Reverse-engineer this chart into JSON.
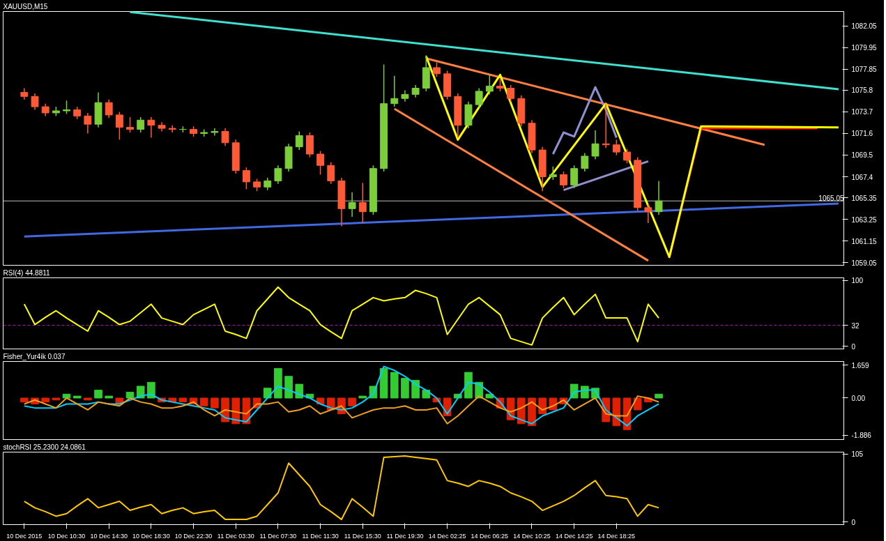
{
  "chart_data": [
    {
      "type": "candlestick",
      "title": "XAUUSD,M15",
      "ylim": [
        1058.8,
        1083.45
      ],
      "yticks": [
        1059.05,
        1061.15,
        1063.25,
        1065.35,
        1067.4,
        1069.5,
        1071.6,
        1073.7,
        1075.8,
        1077.85,
        1079.95,
        1082.05
      ],
      "tick_labels": "y",
      "categories": [
        null,
        null,
        null,
        null,
        null,
        null,
        null,
        null,
        null,
        null,
        null,
        null,
        null,
        null,
        null,
        null,
        null,
        null,
        null,
        null,
        null,
        null,
        null,
        null,
        null,
        null,
        null,
        null,
        null,
        null,
        null,
        null,
        null,
        null,
        null,
        null,
        null,
        null,
        null,
        null,
        null,
        null,
        null,
        null,
        null,
        null,
        null,
        null,
        null,
        null,
        null,
        null,
        null,
        null,
        null,
        null,
        null,
        null,
        null,
        null,
        null,
        null,
        null,
        null,
        null,
        null,
        null,
        null,
        null,
        null,
        null,
        null,
        null,
        null,
        null,
        null,
        null,
        null
      ],
      "ohlc": [
        [
          1075.6,
          1076.0,
          1074.9,
          1075.2
        ],
        [
          1075.2,
          1075.5,
          1073.9,
          1074.2
        ],
        [
          1074.2,
          1074.5,
          1073.3,
          1073.6
        ],
        [
          1073.6,
          1074.2,
          1073.3,
          1073.8
        ],
        [
          1073.8,
          1074.8,
          1073.5,
          1073.9
        ],
        [
          1073.9,
          1074.2,
          1073.0,
          1073.3
        ],
        [
          1073.3,
          1073.6,
          1071.6,
          1072.5
        ],
        [
          1072.5,
          1075.6,
          1072.2,
          1074.6
        ],
        [
          1074.6,
          1074.9,
          1073.1,
          1073.4
        ],
        [
          1073.4,
          1073.7,
          1071.0,
          1072.2
        ],
        [
          1072.2,
          1073.2,
          1071.7,
          1072.0
        ],
        [
          1072.0,
          1073.2,
          1071.7,
          1072.9
        ],
        [
          1072.9,
          1073.2,
          1071.2,
          1072.4
        ],
        [
          1072.4,
          1072.7,
          1071.8,
          1072.1
        ],
        [
          1072.1,
          1072.4,
          1071.7,
          1072.0
        ],
        [
          1072.0,
          1072.3,
          1071.7,
          1072.0
        ],
        [
          1072.0,
          1072.3,
          1071.3,
          1071.6
        ],
        [
          1071.6,
          1072.0,
          1071.3,
          1071.7
        ],
        [
          1071.7,
          1072.1,
          1071.4,
          1071.8
        ],
        [
          1071.8,
          1072.1,
          1070.4,
          1070.7
        ],
        [
          1070.7,
          1071.0,
          1067.7,
          1068.0
        ],
        [
          1068.0,
          1068.3,
          1066.2,
          1066.9
        ],
        [
          1066.9,
          1067.2,
          1066.0,
          1066.4
        ],
        [
          1066.4,
          1067.3,
          1066.1,
          1067.0
        ],
        [
          1067.0,
          1068.5,
          1066.7,
          1068.2
        ],
        [
          1068.2,
          1070.6,
          1067.9,
          1070.3
        ],
        [
          1070.3,
          1071.8,
          1070.0,
          1071.4
        ],
        [
          1071.4,
          1071.7,
          1069.3,
          1069.6
        ],
        [
          1069.6,
          1069.9,
          1067.6,
          1068.5
        ],
        [
          1068.5,
          1068.8,
          1066.7,
          1067.0
        ],
        [
          1067.0,
          1067.3,
          1062.6,
          1064.3
        ],
        [
          1064.3,
          1065.9,
          1063.5,
          1064.9
        ],
        [
          1064.9,
          1066.8,
          1062.9,
          1064.0
        ],
        [
          1064.0,
          1068.5,
          1063.7,
          1068.2
        ],
        [
          1068.2,
          1078.3,
          1067.9,
          1074.5
        ],
        [
          1074.5,
          1077.2,
          1074.2,
          1075.0
        ],
        [
          1075.0,
          1075.8,
          1074.7,
          1075.4
        ],
        [
          1075.4,
          1076.3,
          1075.1,
          1076.0
        ],
        [
          1076.0,
          1079.2,
          1075.7,
          1078.0
        ],
        [
          1078.0,
          1078.5,
          1077.1,
          1077.4
        ],
        [
          1077.4,
          1077.7,
          1074.9,
          1075.2
        ],
        [
          1075.2,
          1075.5,
          1071.2,
          1072.4
        ],
        [
          1072.4,
          1074.7,
          1072.1,
          1074.4
        ],
        [
          1074.4,
          1076.0,
          1074.1,
          1075.7
        ],
        [
          1075.7,
          1077.3,
          1075.4,
          1076.2
        ],
        [
          1076.2,
          1076.9,
          1075.7,
          1076.0
        ],
        [
          1076.0,
          1076.3,
          1074.7,
          1075.0
        ],
        [
          1075.0,
          1075.3,
          1072.3,
          1072.6
        ],
        [
          1072.6,
          1072.9,
          1069.7,
          1070.0
        ],
        [
          1070.0,
          1070.3,
          1066.0,
          1067.4
        ],
        [
          1067.4,
          1068.4,
          1067.1,
          1067.6
        ],
        [
          1067.6,
          1067.9,
          1066.3,
          1066.6
        ],
        [
          1066.6,
          1068.5,
          1066.3,
          1068.2
        ],
        [
          1068.2,
          1069.7,
          1067.9,
          1069.4
        ],
        [
          1069.4,
          1071.9,
          1069.1,
          1070.6
        ],
        [
          1070.6,
          1074.6,
          1070.2,
          1070.5
        ],
        [
          1070.5,
          1071.0,
          1069.5,
          1069.8
        ],
        [
          1069.8,
          1070.1,
          1068.7,
          1069.0
        ],
        [
          1069.0,
          1069.3,
          1064.1,
          1064.4
        ],
        [
          1064.4,
          1064.7,
          1062.9,
          1064.0
        ],
        [
          1064.0,
          1067.0,
          1063.7,
          1065.05
        ],
        null,
        null,
        null,
        null,
        null,
        null,
        null,
        null,
        null,
        null,
        null,
        null,
        null,
        null,
        null,
        null,
        null
      ],
      "ref_lines": [
        {
          "axis": "y",
          "value": 1065.05,
          "label": "1065.05",
          "color": "#c0c0c0"
        }
      ],
      "series": [
        {
          "type": "line",
          "color": "#40e0d0",
          "values": [
            null,
            null,
            null,
            null,
            null,
            null,
            null,
            null,
            null,
            null,
            1083.4,
            null,
            null,
            null,
            null,
            null,
            null,
            null,
            null,
            null,
            null,
            null,
            null,
            null,
            null,
            null,
            null,
            null,
            null,
            null,
            null,
            null,
            null,
            null,
            null,
            null,
            null,
            null,
            null,
            null,
            null,
            null,
            null,
            null,
            null,
            null,
            null,
            null,
            null,
            null,
            null,
            null,
            null,
            null,
            null,
            null,
            null,
            null,
            null,
            null,
            null,
            null,
            null,
            null,
            null,
            null,
            null,
            null,
            null,
            null,
            null,
            null,
            null,
            null,
            null,
            null,
            null,
            1075.9
          ]
        },
        {
          "type": "line",
          "color": "#4169e1",
          "values": [
            1061.6,
            null,
            null,
            null,
            null,
            null,
            null,
            null,
            null,
            null,
            null,
            null,
            null,
            null,
            null,
            null,
            null,
            null,
            null,
            null,
            null,
            null,
            null,
            null,
            null,
            null,
            null,
            null,
            null,
            null,
            null,
            null,
            null,
            null,
            null,
            null,
            null,
            null,
            null,
            null,
            null,
            null,
            null,
            null,
            null,
            null,
            null,
            null,
            null,
            null,
            null,
            null,
            null,
            null,
            null,
            null,
            null,
            null,
            null,
            null,
            null,
            null,
            null,
            null,
            null,
            null,
            null,
            null,
            null,
            null,
            null,
            null,
            null,
            null,
            null,
            null,
            null,
            1064.8
          ]
        },
        {
          "type": "line",
          "color": "#ff8040",
          "values": [
            null,
            null,
            null,
            null,
            null,
            null,
            null,
            null,
            null,
            null,
            null,
            null,
            null,
            null,
            null,
            null,
            null,
            null,
            null,
            null,
            null,
            null,
            null,
            null,
            null,
            null,
            null,
            null,
            null,
            null,
            null,
            null,
            null,
            null,
            null,
            null,
            null,
            null,
            1078.9,
            null,
            null,
            null,
            null,
            null,
            null,
            null,
            null,
            null,
            null,
            null,
            null,
            null,
            null,
            null,
            null,
            null,
            null,
            null,
            null,
            null,
            null,
            null,
            null,
            null,
            null,
            null,
            null,
            null,
            null,
            null,
            1070.5,
            null,
            null,
            null,
            null,
            null,
            null,
            null
          ]
        },
        {
          "type": "line",
          "color": "#ff8040",
          "values": [
            null,
            null,
            null,
            null,
            null,
            null,
            null,
            null,
            null,
            null,
            null,
            null,
            null,
            null,
            null,
            null,
            null,
            null,
            null,
            null,
            null,
            null,
            null,
            null,
            null,
            null,
            null,
            null,
            null,
            null,
            null,
            null,
            null,
            null,
            null,
            1074.0,
            null,
            null,
            null,
            null,
            null,
            null,
            null,
            null,
            null,
            null,
            null,
            null,
            null,
            null,
            null,
            null,
            null,
            null,
            null,
            null,
            null,
            null,
            null,
            1059.25,
            null,
            null,
            null,
            null,
            null,
            null,
            null,
            null,
            null,
            null,
            null,
            null,
            null,
            null,
            null,
            null,
            null,
            null
          ]
        },
        {
          "type": "line",
          "color": "#9090d0",
          "values": [
            null,
            null,
            null,
            null,
            null,
            null,
            null,
            null,
            null,
            null,
            null,
            null,
            null,
            null,
            null,
            null,
            null,
            null,
            null,
            null,
            null,
            null,
            null,
            null,
            null,
            null,
            null,
            null,
            null,
            null,
            null,
            null,
            null,
            null,
            null,
            null,
            null,
            null,
            null,
            null,
            null,
            null,
            null,
            null,
            null,
            null,
            null,
            null,
            null,
            null,
            1069.6,
            1071.7,
            1071.3,
            null,
            1076.1,
            1073.9,
            1071.2,
            null,
            null,
            null,
            null,
            null,
            null,
            null,
            null,
            null,
            null,
            null,
            null,
            null,
            null,
            null,
            null,
            null,
            null,
            null,
            null,
            null
          ]
        },
        {
          "type": "line",
          "color": "#9090d0",
          "values": [
            null,
            null,
            null,
            null,
            null,
            null,
            null,
            null,
            null,
            null,
            null,
            null,
            null,
            null,
            null,
            null,
            null,
            null,
            null,
            null,
            null,
            null,
            null,
            null,
            null,
            null,
            null,
            null,
            null,
            null,
            null,
            null,
            null,
            null,
            null,
            null,
            null,
            null,
            null,
            null,
            null,
            null,
            null,
            null,
            null,
            null,
            null,
            null,
            null,
            null,
            null,
            1066.1,
            null,
            null,
            null,
            null,
            null,
            null,
            null,
            1068.9,
            null,
            null,
            null,
            null,
            null,
            null,
            null,
            null,
            null,
            null,
            null,
            null,
            null,
            null,
            null,
            null,
            null,
            null
          ]
        },
        {
          "type": "line",
          "color": "#ff2000",
          "values": [
            null,
            null,
            null,
            null,
            null,
            null,
            null,
            null,
            null,
            null,
            null,
            null,
            null,
            null,
            null,
            null,
            null,
            null,
            null,
            null,
            null,
            null,
            null,
            null,
            null,
            null,
            null,
            null,
            null,
            null,
            null,
            null,
            null,
            null,
            null,
            null,
            null,
            null,
            null,
            null,
            null,
            null,
            null,
            null,
            null,
            null,
            null,
            null,
            null,
            null,
            null,
            null,
            null,
            null,
            null,
            null,
            null,
            null,
            null,
            null,
            null,
            1059.6,
            null,
            null,
            1072.1,
            null,
            null,
            null,
            null,
            null,
            null,
            null,
            null,
            null,
            null,
            1072.1,
            null,
            null
          ]
        },
        {
          "type": "line",
          "color": "#ffff00",
          "values": [
            null,
            null,
            null,
            null,
            null,
            null,
            null,
            null,
            null,
            null,
            null,
            null,
            null,
            null,
            null,
            null,
            null,
            null,
            null,
            null,
            null,
            null,
            null,
            null,
            null,
            null,
            null,
            null,
            null,
            null,
            null,
            null,
            null,
            null,
            null,
            null,
            null,
            null,
            1079.1,
            null,
            null,
            1071.0,
            null,
            null,
            null,
            1077.3,
            null,
            null,
            null,
            1066.4,
            null,
            null,
            null,
            null,
            null,
            1074.5,
            null,
            null,
            null,
            null,
            null,
            1059.6,
            null,
            null,
            1072.3,
            null,
            null,
            null,
            null,
            null,
            null,
            null,
            null,
            null,
            null,
            null,
            null,
            1072.2
          ]
        }
      ]
    },
    {
      "type": "line",
      "title": "RSI(4) 44.8811",
      "ylim": [
        -4,
        104
      ],
      "yticks": [
        0,
        32,
        100
      ],
      "tick_labels": "y",
      "categories": [
        null,
        null,
        null,
        null,
        null,
        null,
        null,
        null,
        null,
        null,
        null,
        null,
        null,
        null,
        null,
        null,
        null,
        null,
        null,
        null,
        null,
        null,
        null,
        null,
        null,
        null,
        null,
        null,
        null,
        null,
        null,
        null,
        null,
        null,
        null,
        null,
        null,
        null,
        null,
        null,
        null,
        null,
        null,
        null,
        null,
        null,
        null,
        null,
        null,
        null,
        null,
        null,
        null,
        null,
        null,
        null,
        null,
        null,
        null,
        null,
        null,
        null,
        null,
        null,
        null,
        null,
        null,
        null,
        null,
        null,
        null,
        null,
        null,
        null,
        null,
        null,
        null,
        null
      ],
      "ref_lines": [
        {
          "axis": "y",
          "value": 32,
          "color": "#a020a0",
          "line_style": "dashed"
        }
      ],
      "series": [
        {
          "color": "#ffff00",
          "values": [
            64,
            33,
            44,
            54,
            43,
            33,
            23,
            54,
            44,
            33,
            38,
            51,
            64,
            43,
            38,
            33,
            48,
            56,
            64,
            23,
            18,
            12,
            54,
            72,
            90,
            74,
            64,
            54,
            33,
            22,
            12,
            54,
            64,
            74,
            69,
            72,
            74,
            85,
            80,
            74,
            18,
            41,
            64,
            74,
            61,
            48,
            12,
            7,
            2,
            43,
            59,
            74,
            48,
            64,
            79,
            43,
            43,
            43,
            7,
            64,
            43,
            null,
            null,
            null,
            null,
            null,
            null,
            null,
            null,
            null,
            null,
            null,
            null,
            null,
            null,
            null,
            null,
            null
          ]
        }
      ]
    },
    {
      "type": "bar",
      "title": "Fisher_Yur4ik 0.037",
      "ylim": [
        -2.1,
        1.85
      ],
      "yticks": [
        {
          "value": 1.659,
          "label": "1.659"
        },
        {
          "value": 0,
          "label": "0.00"
        },
        {
          "value": -1.886,
          "label": "-1.886"
        }
      ],
      "tick_labels": "y",
      "categories": [
        null,
        null,
        null,
        null,
        null,
        null,
        null,
        null,
        null,
        null,
        null,
        null,
        null,
        null,
        null,
        null,
        null,
        null,
        null,
        null,
        null,
        null,
        null,
        null,
        null,
        null,
        null,
        null,
        null,
        null,
        null,
        null,
        null,
        null,
        null,
        null,
        null,
        null,
        null,
        null,
        null,
        null,
        null,
        null,
        null,
        null,
        null,
        null,
        null,
        null,
        null,
        null,
        null,
        null,
        null,
        null,
        null,
        null,
        null,
        null,
        null,
        null,
        null,
        null,
        null,
        null,
        null,
        null,
        null,
        null,
        null,
        null,
        null,
        null,
        null,
        null,
        null,
        null
      ],
      "values": [
        -0.2,
        -0.3,
        -0.2,
        -0.1,
        0.2,
        0.1,
        -0.1,
        0.4,
        0.1,
        -0.3,
        0.3,
        0.6,
        0.8,
        -0.2,
        -0.2,
        -0.2,
        -0.3,
        -0.4,
        -0.5,
        -1.2,
        -1.3,
        -1.3,
        -0.5,
        0.5,
        1.5,
        1.1,
        0.7,
        0.2,
        -0.3,
        -0.6,
        -0.8,
        -0.4,
        0.1,
        0.6,
        1.5,
        1.3,
        1.0,
        0.9,
        0.4,
        -0.2,
        -0.9,
        0.2,
        1.3,
        0.8,
        0.2,
        -0.5,
        -1.1,
        -1.3,
        -1.4,
        -0.8,
        -0.6,
        -0.3,
        0.7,
        0.6,
        0.5,
        -1.2,
        -1.4,
        -1.6,
        -0.6,
        -0.2,
        0.2,
        null,
        null,
        null,
        null,
        null,
        null,
        null,
        null,
        null,
        null,
        null,
        null,
        null,
        null,
        null,
        null,
        null
      ],
      "colors": [
        "#e02000",
        "#e02000",
        "#e02000",
        "#e02000",
        "#33cc33",
        "#33cc33",
        "#e02000",
        "#33cc33",
        "#33cc33",
        "#e02000",
        "#33cc33",
        "#33cc33",
        "#33cc33",
        "#e02000",
        "#e02000",
        "#e02000",
        "#e02000",
        "#e02000",
        "#e02000",
        "#e02000",
        "#e02000",
        "#e02000",
        "#e02000",
        "#33cc33",
        "#33cc33",
        "#33cc33",
        "#33cc33",
        "#33cc33",
        "#e02000",
        "#e02000",
        "#e02000",
        "#e02000",
        "#33cc33",
        "#33cc33",
        "#33cc33",
        "#33cc33",
        "#33cc33",
        "#33cc33",
        "#33cc33",
        "#e02000",
        "#e02000",
        "#33cc33",
        "#33cc33",
        "#33cc33",
        "#33cc33",
        "#e02000",
        "#e02000",
        "#e02000",
        "#e02000",
        "#e02000",
        "#e02000",
        "#e02000",
        "#33cc33",
        "#33cc33",
        "#33cc33",
        "#e02000",
        "#e02000",
        "#e02000",
        "#e02000",
        "#e02000",
        "#33cc33",
        null,
        null,
        null,
        null,
        null,
        null,
        null,
        null,
        null,
        null,
        null,
        null,
        null,
        null,
        null,
        null,
        null
      ],
      "series": [
        {
          "type": "line",
          "color": "#00d0ff",
          "values": [
            -0.4,
            -0.5,
            -0.5,
            -0.5,
            -0.3,
            -0.3,
            -0.3,
            -0.2,
            -0.3,
            -0.3,
            -0.1,
            0.1,
            0.2,
            -0.1,
            -0.2,
            -0.3,
            -0.4,
            -0.5,
            -0.6,
            -1.0,
            -1.1,
            -1.2,
            -0.6,
            0.0,
            0.6,
            0.4,
            0.2,
            0.0,
            -0.3,
            -0.5,
            -0.6,
            -0.5,
            -0.2,
            0.2,
            1.6,
            1.4,
            1.1,
            0.7,
            0.4,
            0.0,
            -0.8,
            0.0,
            0.8,
            0.7,
            0.3,
            -0.2,
            -0.9,
            -1.1,
            -1.3,
            -0.9,
            -0.7,
            -0.5,
            0.3,
            0.4,
            0.4,
            -0.6,
            -1.0,
            -1.4,
            -0.9,
            -0.6,
            -0.3,
            null,
            null,
            null,
            null,
            null,
            null,
            null,
            null,
            null,
            null,
            null,
            null,
            null,
            null,
            null,
            null,
            null
          ]
        },
        {
          "type": "line",
          "color": "#f0a020",
          "values": [
            -0.3,
            -0.1,
            -0.3,
            -0.5,
            0.0,
            -0.3,
            -0.6,
            -0.2,
            -0.3,
            -0.4,
            0.0,
            -0.2,
            -0.3,
            -0.5,
            -0.5,
            -0.4,
            -0.2,
            -0.6,
            -0.9,
            -0.6,
            -0.7,
            -0.8,
            -0.3,
            -0.3,
            -0.2,
            -0.7,
            -0.6,
            -0.4,
            -0.8,
            -0.6,
            -0.4,
            -1.0,
            -0.8,
            -0.6,
            -0.5,
            -0.5,
            -0.4,
            -0.6,
            -0.6,
            -0.5,
            -1.3,
            -0.9,
            -0.4,
            0.1,
            -0.2,
            -0.5,
            -0.7,
            -0.5,
            -0.2,
            -0.6,
            -0.4,
            -0.1,
            -0.6,
            -0.3,
            0.0,
            -0.8,
            -0.9,
            -0.9,
            0.1,
            0.0,
            -0.2,
            null,
            null,
            null,
            null,
            null,
            null,
            null,
            null,
            null,
            null,
            null,
            null,
            null,
            null,
            null,
            null,
            null
          ]
        }
      ]
    },
    {
      "type": "line",
      "title": "stochRSI 25.2300 24.0861",
      "ylim": [
        -4,
        108
      ],
      "yticks": [
        0,
        105
      ],
      "categories": [
        "10 Dec 2015",
        null,
        null,
        null,
        "10 Dec 10:30",
        null,
        null,
        null,
        "10 Dec 14:30",
        null,
        null,
        null,
        "10 Dec 18:30",
        null,
        null,
        null,
        "10 Dec 22:30",
        null,
        null,
        null,
        "11 Dec 03:30",
        null,
        null,
        null,
        "11 Dec 07:30",
        null,
        null,
        null,
        "11 Dec 11:30",
        null,
        null,
        null,
        "11 Dec 15:30",
        null,
        null,
        null,
        "11 Dec 19:30",
        null,
        null,
        null,
        "14 Dec 02:25",
        null,
        null,
        null,
        "14 Dec 06:25",
        null,
        null,
        null,
        "14 Dec 10:25",
        null,
        null,
        null,
        "14 Dec 14:25",
        null,
        null,
        null,
        "14 Dec 18:25",
        null,
        null,
        null,
        null,
        null,
        null,
        null,
        null,
        null,
        null,
        null,
        null,
        null,
        null,
        null,
        null,
        null,
        null,
        null,
        null,
        null
      ],
      "series": [
        {
          "color": "#ffc800",
          "values": [
            32,
            22,
            16,
            9,
            13,
            25,
            36,
            22,
            27,
            32,
            18,
            23,
            27,
            13,
            18,
            22,
            13,
            16,
            18,
            4,
            4,
            4,
            9,
            27,
            45,
            91,
            73,
            55,
            27,
            16,
            4,
            36,
            23,
            9,
            100,
            101,
            102,
            100,
            98,
            96,
            64,
            60,
            55,
            64,
            60,
            55,
            45,
            39,
            32,
            18,
            25,
            32,
            41,
            53,
            64,
            41,
            39,
            36,
            9,
            27,
            22,
            null,
            null,
            null,
            null,
            null,
            null,
            null,
            null,
            null,
            null,
            null,
            null,
            null,
            null,
            null,
            null,
            null
          ]
        }
      ]
    }
  ]
}
